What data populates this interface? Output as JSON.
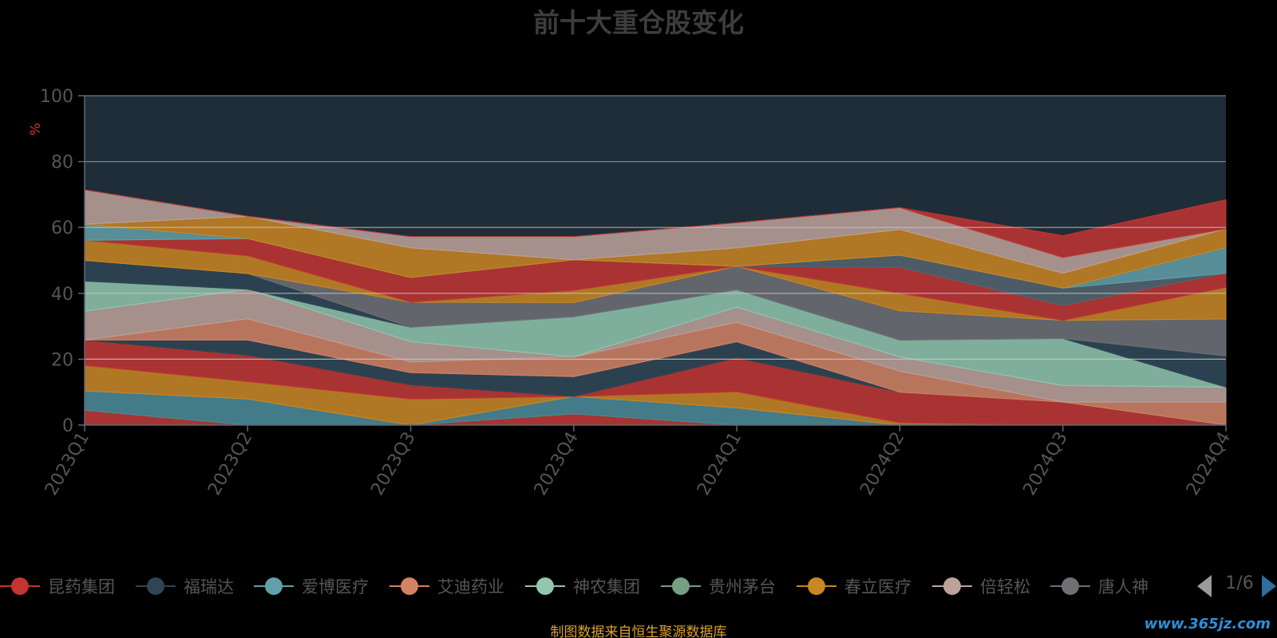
{
  "chart_data": {
    "type": "area",
    "title": "前十大重仓股变化",
    "xlabel": "",
    "ylabel": "%",
    "ylim": [
      0,
      100
    ],
    "yticks": [
      0,
      20,
      40,
      60,
      80,
      100
    ],
    "x": [
      "2023Q1",
      "2023Q2",
      "2023Q3",
      "2023Q4",
      "2024Q1",
      "2024Q2",
      "2024Q3",
      "2024Q4"
    ],
    "grid": true,
    "legend_position": "bottom",
    "series": [
      {
        "name": "昆药集团",
        "color": "#c23531",
        "values": [
          4.5,
          0,
          0,
          3.4,
          0,
          0,
          0,
          0
        ]
      },
      {
        "name": "福瑞达",
        "color": "#2f4554",
        "values": [
          0,
          0,
          0,
          5.3,
          5.2,
          0,
          0,
          0
        ]
      },
      {
        "name": "爱博医疗",
        "color": "#61a0a8",
        "values": [
          5.9,
          7.9,
          0,
          0,
          0,
          0,
          0,
          0
        ]
      },
      {
        "name": "艾迪药业",
        "color": "#d48265",
        "values": [
          0,
          0,
          0,
          0,
          4.9,
          0.7,
          0,
          0
        ]
      },
      {
        "name": "神农集团",
        "color": "#91c7ae",
        "values": [
          0,
          0,
          0,
          0,
          10.3,
          9.3,
          7.0,
          0
        ]
      },
      {
        "name": "贵州茅台",
        "color": "#749f83",
        "values": [
          0,
          0,
          7.9,
          0,
          0,
          0,
          0,
          0
        ]
      },
      {
        "name": "春立医疗",
        "color": "#ca8622",
        "values": [
          7.7,
          5.3,
          4.3,
          0,
          0,
          0,
          0,
          0
        ]
      },
      {
        "name": "倍轻松",
        "color": "#bda29a",
        "values": [
          0,
          0,
          3.7,
          0,
          0,
          0,
          0,
          0
        ]
      },
      {
        "name": "唐人神",
        "color": "#6e7074",
        "values": [
          0,
          0,
          0,
          6.0,
          4.9,
          0,
          0,
          0
        ]
      },
      {
        "name": "",
        "color": "#546570",
        "values": [
          0,
          0,
          0,
          0,
          0,
          0,
          0,
          0
        ]
      }
    ]
  },
  "legend": {
    "items": [
      {
        "label": "昆药集团",
        "color": "#c23531"
      },
      {
        "label": "福瑞达",
        "color": "#2f4554"
      },
      {
        "label": "爱博医疗",
        "color": "#61a0a8"
      },
      {
        "label": "艾迪药业",
        "color": "#d48265"
      },
      {
        "label": "神农集团",
        "color": "#91c7ae"
      },
      {
        "label": "贵州茅台",
        "color": "#749f83"
      },
      {
        "label": "春立医疗",
        "color": "#ca8622"
      },
      {
        "label": "倍轻松",
        "color": "#bda29a"
      },
      {
        "label": "唐人神",
        "color": "#6e7074"
      }
    ],
    "page_indicator": "1/6"
  },
  "footer": {
    "source_note": "制图数据来自恒生聚源数据库",
    "watermark": "www.365jz.com"
  },
  "bands": [
    {
      "color": "#c23531",
      "values": [
        0,
        0,
        0,
        0,
        0,
        0,
        0,
        0
      ]
    },
    {
      "color": "#4a8a96",
      "values": [
        4.5,
        0,
        0,
        3.4,
        0,
        0,
        0,
        0
      ]
    },
    {
      "color": "#ca8622",
      "values": [
        10.4,
        7.9,
        0,
        8.7,
        5.2,
        0,
        0,
        0
      ]
    },
    {
      "color": "#c23531",
      "values": [
        18.1,
        13.2,
        7.9,
        8.7,
        10.1,
        0.7,
        0,
        0
      ]
    },
    {
      "color": "#2f4554",
      "values": [
        25.8,
        21.2,
        12.2,
        8.7,
        20.4,
        10.0,
        7.0,
        0
      ]
    },
    {
      "color": "#d48265",
      "values": [
        25.8,
        25.8,
        15.9,
        14.7,
        25.3,
        10.0,
        7.0,
        0
      ]
    },
    {
      "color": "#bda29a",
      "values": [
        25.8,
        32.3,
        19.2,
        20.7,
        31.2,
        16.4,
        7.0,
        7.0
      ]
    },
    {
      "color": "#91c7ae",
      "values": [
        34.6,
        41.2,
        25.3,
        20.7,
        35.8,
        20.7,
        12.0,
        11.5
      ]
    },
    {
      "color": "#2f4554",
      "values": [
        43.7,
        41.2,
        29.7,
        32.9,
        41.1,
        25.8,
        26.3,
        11.5
      ]
    },
    {
      "color": "#6e7074",
      "values": [
        50.0,
        46.0,
        29.7,
        32.9,
        41.1,
        25.8,
        26.3,
        21.0
      ]
    },
    {
      "color": "#ca8622",
      "values": [
        50.0,
        46.0,
        37.3,
        37.2,
        48.2,
        34.7,
        31.8,
        32.2
      ]
    },
    {
      "color": "#c23531",
      "values": [
        56.1,
        51.4,
        37.3,
        40.9,
        48.2,
        40.0,
        31.8,
        41.8
      ]
    },
    {
      "color": "#546570",
      "values": [
        56.1,
        56.6,
        44.8,
        50.2,
        48.2,
        47.9,
        36.3,
        46.1
      ]
    },
    {
      "color": "#61a0a8",
      "values": [
        56.1,
        56.6,
        44.8,
        50.2,
        48.2,
        51.6,
        41.6,
        46.1
      ]
    },
    {
      "color": "#ca8622",
      "values": [
        61.0,
        56.6,
        44.8,
        50.2,
        48.2,
        51.6,
        41.6,
        53.9
      ]
    },
    {
      "color": "#bda29a",
      "values": [
        61.0,
        63.4,
        53.8,
        50.2,
        53.8,
        59.4,
        46.1,
        59.6
      ]
    },
    {
      "color": "#c23531",
      "values": [
        71.4,
        63.4,
        57.2,
        57.2,
        61.4,
        66.0,
        50.9,
        59.6
      ]
    },
    {
      "color": "#546570",
      "values": [
        71.4,
        63.4,
        57.2,
        57.2,
        61.4,
        66.0,
        57.5,
        68.4
      ]
    }
  ]
}
